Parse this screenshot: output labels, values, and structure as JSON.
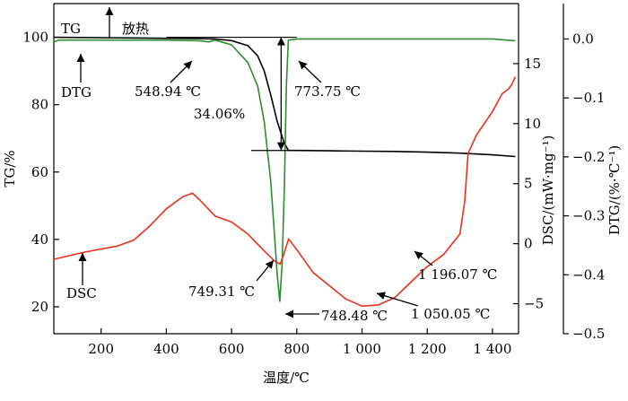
{
  "chart_data": {
    "type": "line",
    "xlabel": "温度/℃",
    "xlim": [
      55,
      1480
    ],
    "x_ticks": [
      200,
      400,
      600,
      800,
      1000,
      1200,
      1400
    ],
    "x_tick_labels": [
      "200",
      "400",
      "600",
      "800",
      "1 000",
      "1 200",
      "1 400"
    ],
    "axes": {
      "tg": {
        "label": "TG/%",
        "lim": [
          12,
          110
        ],
        "ticks": [
          20,
          40,
          60,
          80,
          100
        ],
        "tick_labels": [
          "20",
          "40",
          "60",
          "80",
          "100"
        ]
      },
      "dsc": {
        "label": "DSC/(mW·mg⁻¹)",
        "lim": [
          -7.5,
          20
        ],
        "ticks": [
          -5,
          0,
          5,
          10,
          15
        ],
        "tick_labels": [
          "−5",
          "0",
          "5",
          "10",
          "15"
        ]
      },
      "dtg": {
        "label": "DTG/(%·℃⁻¹)",
        "lim": [
          -0.5,
          0.06
        ],
        "ticks": [
          0.0,
          -0.1,
          -0.2,
          -0.3,
          -0.4,
          -0.5
        ],
        "tick_labels": [
          "0.0",
          "−0.1",
          "−0.2",
          "−0.3",
          "−0.4",
          "−0.5"
        ]
      }
    },
    "series": [
      {
        "name": "TG",
        "axis": "tg",
        "color": "#000000",
        "x": [
          55,
          300,
          500,
          549,
          600,
          650,
          680,
          700,
          720,
          740,
          760,
          774,
          800,
          900,
          1000,
          1100,
          1200,
          1300,
          1400,
          1470
        ],
        "y": [
          100,
          99.8,
          99.6,
          99.5,
          99.0,
          97.5,
          94.5,
          90.0,
          83.0,
          75.0,
          69.0,
          66.4,
          66.4,
          66.3,
          66.2,
          66.1,
          65.9,
          65.6,
          65.1,
          64.6
        ]
      },
      {
        "name": "DTG",
        "axis": "dtg",
        "color": "#2e8b2e",
        "x": [
          55,
          70,
          200,
          400,
          500,
          530,
          549,
          600,
          650,
          680,
          700,
          720,
          730,
          740,
          748,
          755,
          762,
          768,
          774,
          800,
          1000,
          1200,
          1400,
          1470
        ],
        "y": [
          -0.005,
          -0.002,
          -0.002,
          -0.002,
          -0.003,
          -0.005,
          -0.002,
          -0.01,
          -0.04,
          -0.08,
          -0.14,
          -0.24,
          -0.32,
          -0.4,
          -0.445,
          -0.38,
          -0.25,
          -0.08,
          -0.002,
          0.0,
          0.0,
          0.0,
          0.0,
          -0.003
        ]
      },
      {
        "name": "DSC",
        "axis": "dsc",
        "color": "#e8301a",
        "x": [
          55,
          150,
          250,
          300,
          350,
          400,
          450,
          480,
          500,
          550,
          600,
          650,
          700,
          730,
          749,
          760,
          775,
          800,
          850,
          900,
          950,
          1000,
          1050,
          1100,
          1150,
          1196,
          1250,
          1300,
          1315,
          1325,
          1350,
          1400,
          1430,
          1450,
          1460,
          1470
        ],
        "y": [
          -1.3,
          -0.7,
          -0.2,
          0.3,
          1.5,
          2.9,
          3.9,
          4.2,
          3.7,
          2.3,
          1.8,
          0.8,
          -0.6,
          -1.4,
          -1.7,
          -0.9,
          0.4,
          -0.5,
          -2.4,
          -3.5,
          -4.6,
          -5.2,
          -5.1,
          -4.5,
          -3.2,
          -2.0,
          -0.9,
          0.8,
          3.5,
          7.5,
          9.0,
          11.0,
          12.5,
          12.9,
          13.3,
          13.9
        ]
      }
    ],
    "annotations": [
      {
        "id": "tg_label",
        "text": "TG"
      },
      {
        "id": "exo_label",
        "text": "放热"
      },
      {
        "id": "dtg_label",
        "text": "DTG"
      },
      {
        "id": "dsc_label",
        "text": "DSC"
      },
      {
        "id": "t549",
        "text": "548.94 ℃"
      },
      {
        "id": "t774",
        "text": "773.75 ℃"
      },
      {
        "id": "mass_loss",
        "text": "34.06%"
      },
      {
        "id": "t749",
        "text": "749.31 ℃"
      },
      {
        "id": "t748",
        "text": "748.48 ℃"
      },
      {
        "id": "t1050",
        "text": "1 050.05 ℃"
      },
      {
        "id": "t1196",
        "text": "1 196.07 ℃"
      }
    ]
  }
}
